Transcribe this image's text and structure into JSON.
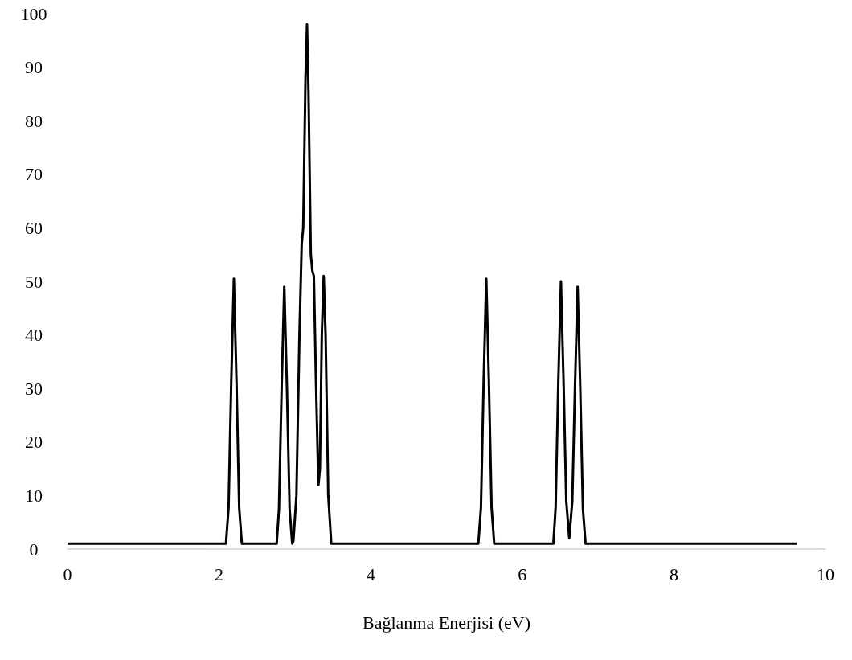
{
  "chart_data": {
    "type": "line",
    "xlabel": "Bağlanma Enerjisi (eV)",
    "x": [
      0,
      2.09,
      2.125,
      2.16,
      2.195,
      2.23,
      2.265,
      2.3,
      2.76,
      2.79,
      2.825,
      2.86,
      2.895,
      2.93,
      2.965,
      2.98,
      3.02,
      3.06,
      3.09,
      3.11,
      3.14,
      3.16,
      3.18,
      3.21,
      3.23,
      3.25,
      3.28,
      3.31,
      3.33,
      3.355,
      3.38,
      3.405,
      3.44,
      3.48,
      5.42,
      5.455,
      5.49,
      5.525,
      5.56,
      5.595,
      5.63,
      6.41,
      6.44,
      6.475,
      6.51,
      6.545,
      6.58,
      6.62,
      6.66,
      6.695,
      6.73,
      6.765,
      6.8,
      6.835,
      9.62
    ],
    "series": [
      {
        "color": "#000000",
        "values": [
          1,
          1,
          7.7,
          31,
          50.5,
          31,
          7.7,
          1,
          1,
          7.5,
          30,
          49,
          30,
          7.5,
          1,
          1.5,
          10,
          40,
          57,
          60,
          88,
          98,
          85,
          55,
          52,
          51,
          30,
          12,
          15,
          40,
          51,
          40,
          10,
          1,
          1,
          7.7,
          31,
          50.5,
          31,
          7.7,
          1,
          1,
          7.7,
          31,
          50,
          31,
          9,
          2,
          9,
          30,
          49,
          30,
          7.5,
          1,
          1
        ]
      }
    ],
    "xlim": [
      0,
      10
    ],
    "xticks": [
      0,
      2,
      4,
      6,
      8,
      10
    ],
    "ylim": [
      0,
      100
    ],
    "yticks": [
      0,
      10,
      20,
      30,
      40,
      50,
      60,
      70,
      80,
      90,
      100
    ],
    "grid": false,
    "marker": "none",
    "line_style": "solid"
  }
}
